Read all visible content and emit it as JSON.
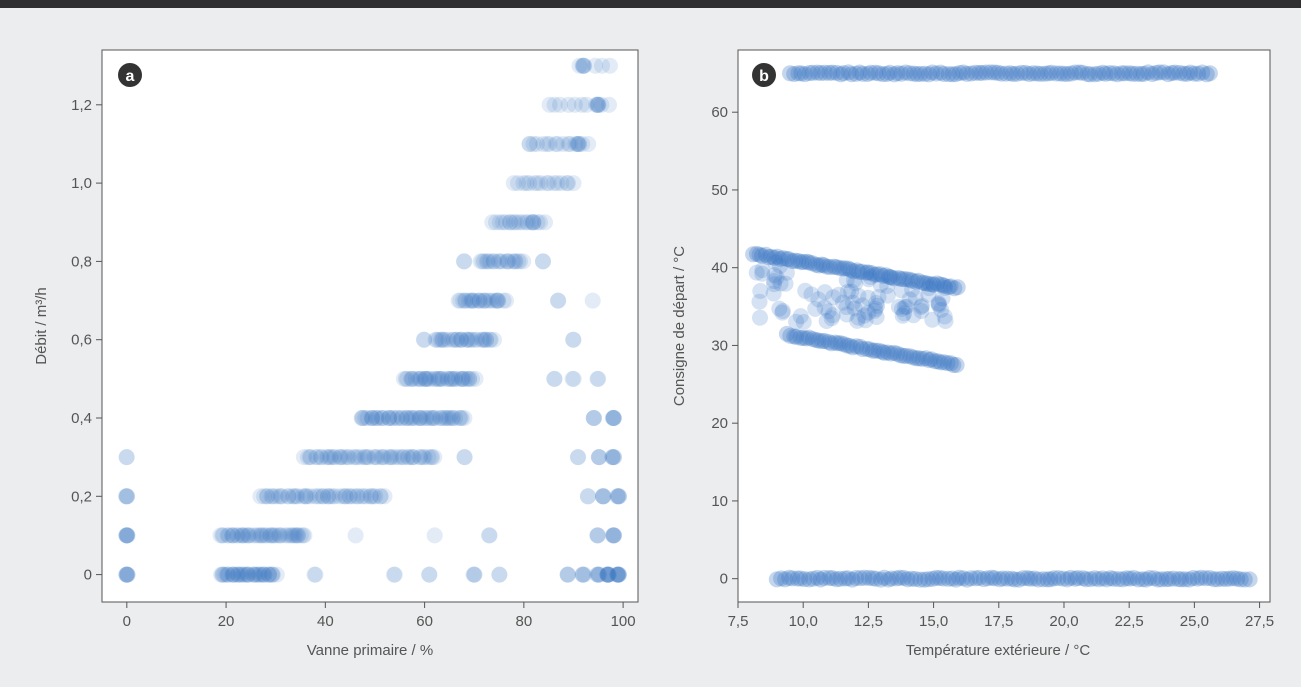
{
  "chart_data": [
    {
      "panel": "a",
      "type": "scatter",
      "xlabel": "Vanne primaire / %",
      "ylabel": "Débit / m³/h",
      "xlim": [
        -5,
        103
      ],
      "ylim": [
        -0.07,
        1.34
      ],
      "xticks": [
        0,
        20,
        40,
        60,
        80,
        100
      ],
      "xtick_labels": [
        "0",
        "20",
        "40",
        "60",
        "80",
        "100"
      ],
      "yticks": [
        0,
        0.2,
        0.4,
        0.6,
        0.8,
        1.0,
        1.2
      ],
      "ytick_labels": [
        "0",
        "0,2",
        "0,4",
        "0,6",
        "0,8",
        "1,0",
        "1,2"
      ],
      "grid": false,
      "marker_color": "#3a78c4",
      "marker_alpha": 0.15,
      "runs": [
        {
          "y": 0.0,
          "x_from": 19,
          "x_to": 30,
          "n": 40
        },
        {
          "y": 0.1,
          "x_from": 19,
          "x_to": 36,
          "n": 45
        },
        {
          "y": 0.2,
          "x_from": 27,
          "x_to": 52,
          "n": 50
        },
        {
          "y": 0.3,
          "x_from": 36,
          "x_to": 62,
          "n": 55
        },
        {
          "y": 0.4,
          "x_from": 47,
          "x_to": 68,
          "n": 55
        },
        {
          "y": 0.5,
          "x_from": 56,
          "x_to": 70,
          "n": 40
        },
        {
          "y": 0.6,
          "x_from": 62,
          "x_to": 74,
          "n": 30
        },
        {
          "y": 0.7,
          "x_from": 67,
          "x_to": 76,
          "n": 25
        },
        {
          "y": 0.8,
          "x_from": 71,
          "x_to": 80,
          "n": 20
        },
        {
          "y": 0.9,
          "x_from": 74,
          "x_to": 84,
          "n": 18
        },
        {
          "y": 1.0,
          "x_from": 78,
          "x_to": 90,
          "n": 16
        },
        {
          "y": 1.1,
          "x_from": 82,
          "x_to": 93,
          "n": 14
        },
        {
          "y": 1.2,
          "x_from": 85,
          "x_to": 97,
          "n": 10
        },
        {
          "y": 1.3,
          "x_from": 91,
          "x_to": 97,
          "n": 5
        }
      ],
      "points": [
        {
          "x": 0,
          "y": 0.0,
          "count": 6
        },
        {
          "x": 0,
          "y": 0.1,
          "count": 6
        },
        {
          "x": 0,
          "y": 0.2,
          "count": 4
        },
        {
          "x": 0,
          "y": 0.3,
          "count": 2
        },
        {
          "x": 97,
          "y": 0.0,
          "count": 8
        },
        {
          "x": 99,
          "y": 0.0,
          "count": 8
        },
        {
          "x": 95,
          "y": 0.0,
          "count": 5
        },
        {
          "x": 92,
          "y": 0.0,
          "count": 4
        },
        {
          "x": 89,
          "y": 0.0,
          "count": 3
        },
        {
          "x": 70,
          "y": 0.0,
          "count": 3
        },
        {
          "x": 61,
          "y": 0.0,
          "count": 2
        },
        {
          "x": 54,
          "y": 0.0,
          "count": 2
        },
        {
          "x": 38,
          "y": 0.0,
          "count": 2
        },
        {
          "x": 75,
          "y": 0.0,
          "count": 2
        },
        {
          "x": 98,
          "y": 0.1,
          "count": 5
        },
        {
          "x": 95,
          "y": 0.1,
          "count": 3
        },
        {
          "x": 73,
          "y": 0.1,
          "count": 2
        },
        {
          "x": 62,
          "y": 0.1,
          "count": 1
        },
        {
          "x": 46,
          "y": 0.1,
          "count": 1
        },
        {
          "x": 99,
          "y": 0.2,
          "count": 5
        },
        {
          "x": 96,
          "y": 0.2,
          "count": 4
        },
        {
          "x": 93,
          "y": 0.2,
          "count": 2
        },
        {
          "x": 98,
          "y": 0.3,
          "count": 5
        },
        {
          "x": 95,
          "y": 0.3,
          "count": 3
        },
        {
          "x": 91,
          "y": 0.3,
          "count": 2
        },
        {
          "x": 68,
          "y": 0.3,
          "count": 2
        },
        {
          "x": 98,
          "y": 0.4,
          "count": 5
        },
        {
          "x": 94,
          "y": 0.4,
          "count": 3
        },
        {
          "x": 90,
          "y": 0.5,
          "count": 2
        },
        {
          "x": 86,
          "y": 0.5,
          "count": 2
        },
        {
          "x": 95,
          "y": 0.5,
          "count": 2
        },
        {
          "x": 90,
          "y": 0.6,
          "count": 2
        },
        {
          "x": 60,
          "y": 0.6,
          "count": 2
        },
        {
          "x": 87,
          "y": 0.7,
          "count": 2
        },
        {
          "x": 94,
          "y": 0.7,
          "count": 1
        },
        {
          "x": 84,
          "y": 0.8,
          "count": 2
        },
        {
          "x": 68,
          "y": 0.8,
          "count": 2
        },
        {
          "x": 82,
          "y": 0.9,
          "count": 2
        },
        {
          "x": 91,
          "y": 1.1,
          "count": 3
        },
        {
          "x": 95,
          "y": 1.2,
          "count": 4
        },
        {
          "x": 92,
          "y": 1.3,
          "count": 3
        },
        {
          "x": 81,
          "y": 1.1,
          "count": 2
        }
      ]
    },
    {
      "panel": "b",
      "type": "scatter",
      "xlabel": "Température extérieure / °C",
      "ylabel": "Consigne de départ / °C",
      "xlim": [
        7.5,
        27.9
      ],
      "ylim": [
        -3,
        68
      ],
      "xticks": [
        7.5,
        10.0,
        12.5,
        15.0,
        17.5,
        20.0,
        22.5,
        25.0,
        27.5
      ],
      "xtick_labels": [
        "7,5",
        "10,0",
        "12,5",
        "15,0",
        "17,5",
        "20,0",
        "22,5",
        "25,0",
        "27,5"
      ],
      "yticks": [
        0,
        10,
        20,
        30,
        40,
        50,
        60
      ],
      "ytick_labels": [
        "0",
        "10",
        "20",
        "30",
        "40",
        "50",
        "60"
      ],
      "grid": false,
      "marker_color": "#3a78c4",
      "marker_alpha": 0.3,
      "lines": [
        {
          "x1": 9.5,
          "y1": 65,
          "x2": 25.6,
          "y2": 65,
          "n": 110
        },
        {
          "x1": 9.0,
          "y1": 0,
          "x2": 27.1,
          "y2": 0,
          "n": 120
        },
        {
          "x1": 8.1,
          "y1": 41.8,
          "x2": 15.9,
          "y2": 37.4,
          "n": 70
        },
        {
          "x1": 9.4,
          "y1": 31.4,
          "x2": 15.9,
          "y2": 27.5,
          "n": 55
        }
      ],
      "cluster": {
        "x_range": [
          8.0,
          15.5
        ],
        "y_range": [
          33,
          40
        ],
        "n": 90
      }
    }
  ]
}
